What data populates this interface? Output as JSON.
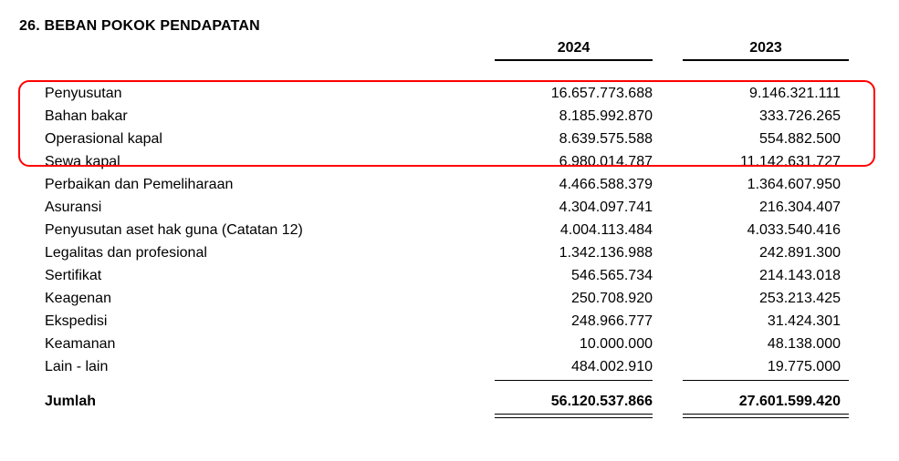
{
  "section_title": "26. BEBAN POKOK PENDAPATAN",
  "columns": [
    "2024",
    "2023"
  ],
  "rows": [
    {
      "label": "Penyusutan",
      "v2024": "16.657.773.688",
      "v2023": "9.146.321.111"
    },
    {
      "label": "Bahan bakar",
      "v2024": "8.185.992.870",
      "v2023": "333.726.265"
    },
    {
      "label": "Operasional kapal",
      "v2024": "8.639.575.588",
      "v2023": "554.882.500"
    },
    {
      "label": "Sewa kapal",
      "v2024": "6.980.014.787",
      "v2023": "11.142.631.727"
    },
    {
      "label": "Perbaikan dan Pemeliharaan",
      "v2024": "4.466.588.379",
      "v2023": "1.364.607.950"
    },
    {
      "label": "Asuransi",
      "v2024": "4.304.097.741",
      "v2023": "216.304.407"
    },
    {
      "label": "Penyusutan aset hak guna (Catatan 12)",
      "v2024": "4.004.113.484",
      "v2023": "4.033.540.416"
    },
    {
      "label": "Legalitas dan profesional",
      "v2024": "1.342.136.988",
      "v2023": "242.891.300"
    },
    {
      "label": "Sertifikat",
      "v2024": "546.565.734",
      "v2023": "214.143.018"
    },
    {
      "label": "Keagenan",
      "v2024": "250.708.920",
      "v2023": "253.213.425"
    },
    {
      "label": "Ekspedisi",
      "v2024": "248.966.777",
      "v2023": "31.424.301"
    },
    {
      "label": "Keamanan",
      "v2024": "10.000.000",
      "v2023": "48.138.000"
    },
    {
      "label": "Lain - lain",
      "v2024": "484.002.910",
      "v2023": "19.775.000"
    }
  ],
  "total": {
    "label": "Jumlah",
    "v2024": "56.120.537.866",
    "v2023": "27.601.599.420"
  },
  "highlight_color": "#ff0000"
}
